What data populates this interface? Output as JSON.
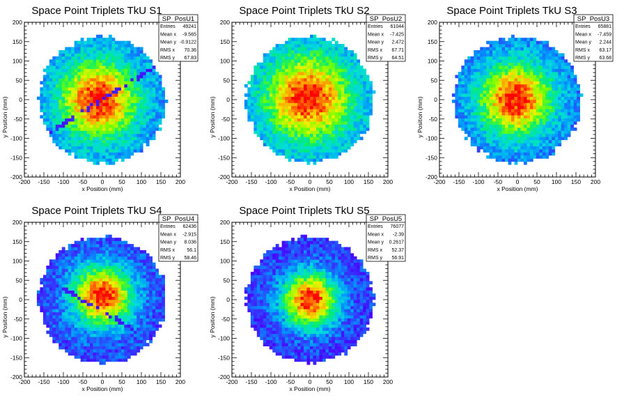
{
  "chart_data": [
    {
      "type": "heatmap",
      "title": "Space Point Triplets TkU S1",
      "xlabel": "x Position (mm)",
      "ylabel": "y Position (mm)",
      "xlim": [
        -200,
        200
      ],
      "ylim": [
        -200,
        200
      ],
      "xticks": [
        "-200",
        "-150",
        "-100",
        "-50",
        "0",
        "50",
        "100",
        "150",
        "200"
      ],
      "yticks": [
        "200",
        "150",
        "100",
        "50",
        "0",
        "-50",
        "-100",
        "-150",
        "-200"
      ],
      "grid": false,
      "colormap": "rainbow",
      "stats_box": {
        "name": "SP_PosU1",
        "rows": [
          {
            "label": "Entries",
            "value": "49241"
          },
          {
            "label": "Mean x",
            "value": "-9.565"
          },
          {
            "label": "Mean y",
            "value": "-0.9122"
          },
          {
            "label": "RMS x",
            "value": "70.36"
          },
          {
            "label": "RMS y",
            "value": "67.83"
          }
        ]
      },
      "disc_radius_mm": 160,
      "core_center_mm": [
        -10,
        0
      ],
      "core_sigma_mm": 70,
      "edge_level": 0.22,
      "dead_strip": {
        "angle_deg": 32,
        "offset_mm": 0
      }
    },
    {
      "type": "heatmap",
      "title": "Space Point Triplets TkU S2",
      "xlabel": "x Position (mm)",
      "ylabel": "y Position (mm)",
      "xlim": [
        -200,
        200
      ],
      "ylim": [
        -200,
        200
      ],
      "xticks": [
        "-200",
        "-150",
        "-100",
        "-50",
        "0",
        "50",
        "100",
        "150",
        "200"
      ],
      "yticks": [
        "200",
        "150",
        "100",
        "50",
        "0",
        "-50",
        "-100",
        "-150",
        "-200"
      ],
      "grid": false,
      "colormap": "rainbow",
      "stats_box": {
        "name": "SP_PosU2",
        "rows": [
          {
            "label": "Entries",
            "value": "61044"
          },
          {
            "label": "Mean x",
            "value": "-7.425"
          },
          {
            "label": "Mean y",
            "value": "2.472"
          },
          {
            "label": "RMS x",
            "value": "67.71"
          },
          {
            "label": "RMS y",
            "value": "64.51"
          }
        ]
      },
      "disc_radius_mm": 160,
      "core_center_mm": [
        -5,
        5
      ],
      "core_sigma_mm": 75,
      "edge_level": 0.25,
      "dead_strip": null
    },
    {
      "type": "heatmap",
      "title": "Space Point Triplets TkU S3",
      "xlabel": "x Position (mm)",
      "ylabel": "y Position (mm)",
      "xlim": [
        -200,
        200
      ],
      "ylim": [
        -200,
        200
      ],
      "xticks": [
        "-200",
        "-150",
        "-100",
        "-50",
        "0",
        "50",
        "100",
        "150",
        "200"
      ],
      "yticks": [
        "200",
        "150",
        "100",
        "50",
        "0",
        "-50",
        "-100",
        "-150",
        "-200"
      ],
      "grid": false,
      "colormap": "rainbow",
      "stats_box": {
        "name": "SP_PosU3",
        "rows": [
          {
            "label": "Entries",
            "value": "65881"
          },
          {
            "label": "Mean x",
            "value": "-7.459"
          },
          {
            "label": "Mean y",
            "value": "2.244"
          },
          {
            "label": "RMS x",
            "value": "63.17"
          },
          {
            "label": "RMS y",
            "value": "63.68"
          }
        ]
      },
      "disc_radius_mm": 160,
      "core_center_mm": [
        -5,
        0
      ],
      "core_sigma_mm": 65,
      "edge_level": 0.2,
      "dead_strip": null
    },
    {
      "type": "heatmap",
      "title": "Space Point Triplets TkU S4",
      "xlabel": "x Position (mm)",
      "ylabel": "y Position (mm)",
      "xlim": [
        -200,
        200
      ],
      "ylim": [
        -200,
        200
      ],
      "xticks": [
        "-200",
        "-150",
        "-100",
        "-50",
        "0",
        "50",
        "100",
        "150",
        "200"
      ],
      "yticks": [
        "200",
        "150",
        "100",
        "50",
        "0",
        "-50",
        "-100",
        "-150",
        "-200"
      ],
      "grid": false,
      "colormap": "rainbow",
      "stats_box": {
        "name": "SP_PosU4",
        "rows": [
          {
            "label": "Entries",
            "value": "62436"
          },
          {
            "label": "Mean x",
            "value": "-2.915"
          },
          {
            "label": "Mean y",
            "value": "8.036"
          },
          {
            "label": "RMS x",
            "value": "56.1"
          },
          {
            "label": "RMS y",
            "value": "58.46"
          }
        ]
      },
      "disc_radius_mm": 160,
      "core_center_mm": [
        0,
        10
      ],
      "core_sigma_mm": 55,
      "edge_level": 0.12,
      "dead_strip": {
        "angle_deg": -30,
        "offset_mm": -25
      }
    },
    {
      "type": "heatmap",
      "title": "Space Point Triplets TkU S5",
      "xlabel": "x Position (mm)",
      "ylabel": "y Position (mm)",
      "xlim": [
        -200,
        200
      ],
      "ylim": [
        -200,
        200
      ],
      "xticks": [
        "-200",
        "-150",
        "-100",
        "-50",
        "0",
        "50",
        "100",
        "150",
        "200"
      ],
      "yticks": [
        "200",
        "150",
        "100",
        "50",
        "0",
        "-50",
        "-100",
        "-150",
        "-200"
      ],
      "grid": false,
      "colormap": "rainbow",
      "stats_box": {
        "name": "SP_PosU5",
        "rows": [
          {
            "label": "Entries",
            "value": "76077"
          },
          {
            "label": "Mean x",
            "value": "-2.39"
          },
          {
            "label": "Mean y",
            "value": "0.2617"
          },
          {
            "label": "RMS x",
            "value": "52.37"
          },
          {
            "label": "RMS y",
            "value": "56.91"
          }
        ]
      },
      "disc_radius_mm": 160,
      "core_center_mm": [
        0,
        0
      ],
      "core_sigma_mm": 50,
      "edge_level": 0.1,
      "dead_strip": null
    }
  ]
}
